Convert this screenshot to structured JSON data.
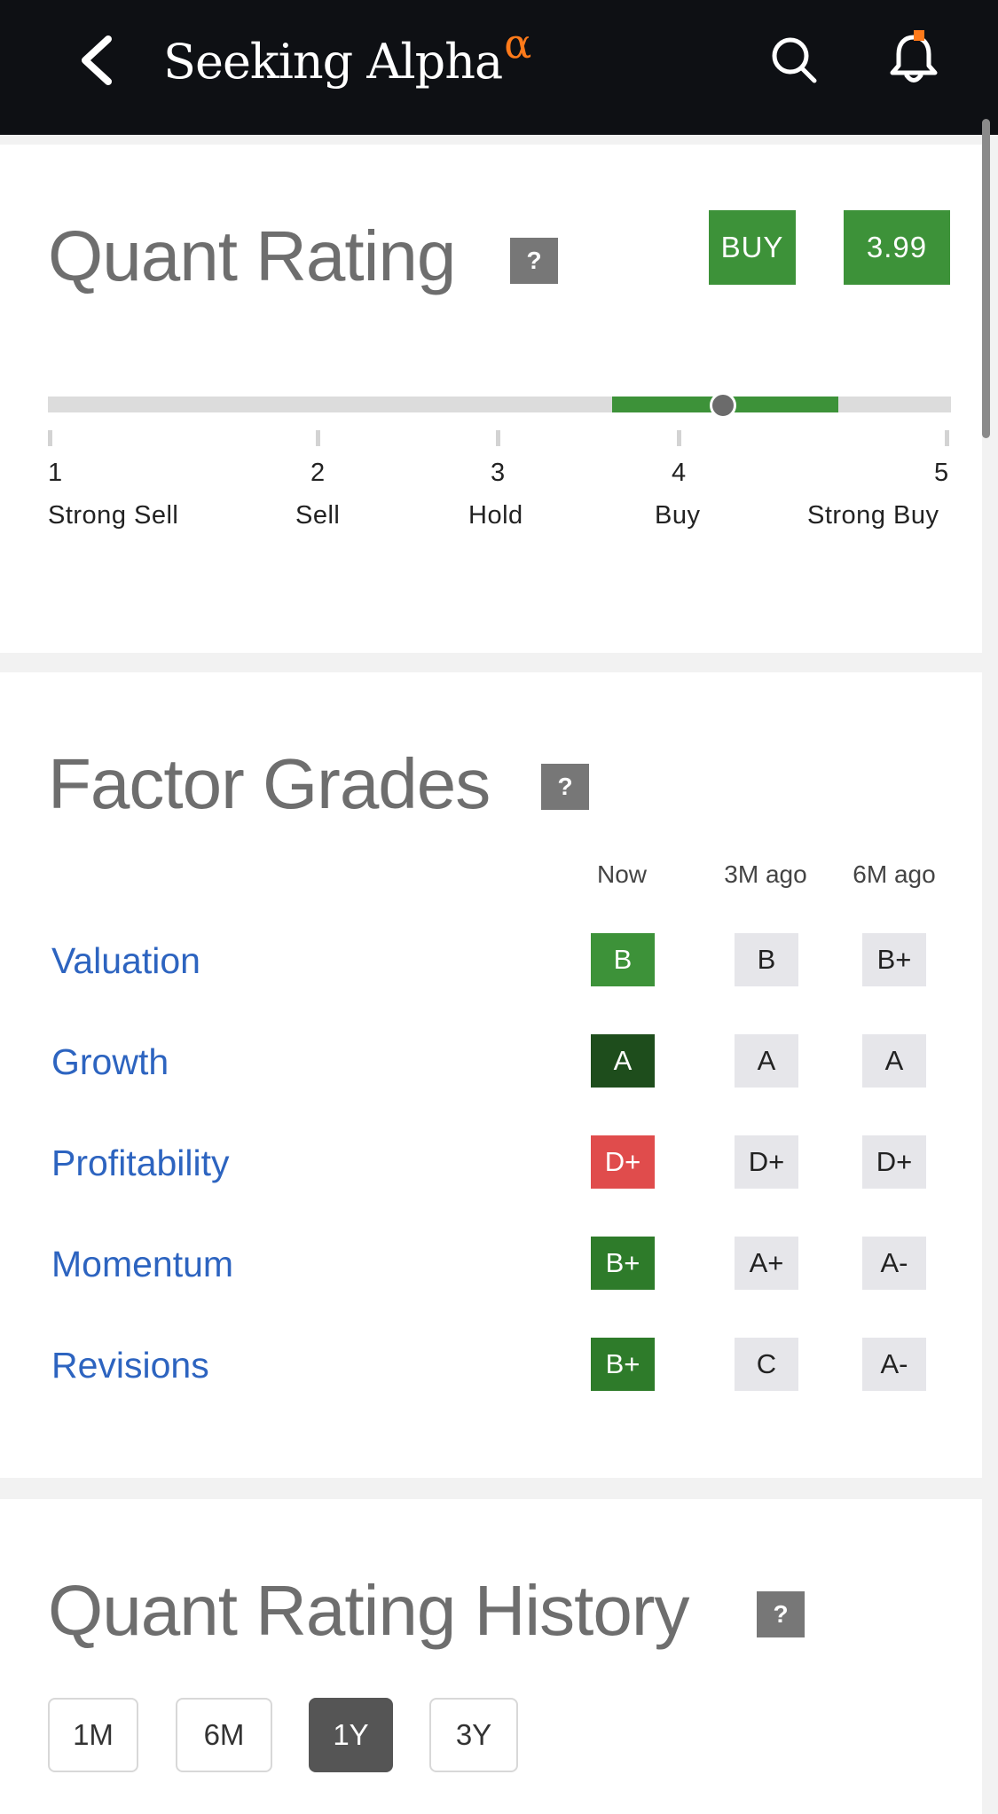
{
  "header": {
    "brand_name": "Seeking Alpha",
    "brand_symbol": "α",
    "icons": [
      "back-chevron-icon",
      "search-icon",
      "bell-icon"
    ],
    "notification_dot_color": "#ff7a1a"
  },
  "quant_rating": {
    "title": "Quant Rating",
    "help": "?",
    "rating_label": "BUY",
    "score": "3.99",
    "scale": [
      {
        "num": "1",
        "label": "Strong Sell"
      },
      {
        "num": "2",
        "label": "Sell"
      },
      {
        "num": "3",
        "label": "Hold"
      },
      {
        "num": "4",
        "label": "Buy"
      },
      {
        "num": "5",
        "label": "Strong Buy"
      }
    ],
    "knob_value": 3.99,
    "highlight_range": [
      3.5,
      4.5
    ],
    "accent_color": "#3d9239"
  },
  "factor_grades": {
    "title": "Factor Grades",
    "help": "?",
    "columns": [
      "Now",
      "3M ago",
      "6M ago"
    ],
    "rows": [
      {
        "factor": "Valuation",
        "now": "B",
        "m3": "B",
        "m6": "B+",
        "now_color": "#3d9239"
      },
      {
        "factor": "Growth",
        "now": "A",
        "m3": "A",
        "m6": "A",
        "now_color": "#1e4d1c"
      },
      {
        "factor": "Profitability",
        "now": "D+",
        "m3": "D+",
        "m6": "D+",
        "now_color": "#e04c4c"
      },
      {
        "factor": "Momentum",
        "now": "B+",
        "m3": "A+",
        "m6": "A-",
        "now_color": "#2e7b2a"
      },
      {
        "factor": "Revisions",
        "now": "B+",
        "m3": "C",
        "m6": "A-",
        "now_color": "#2e7b2a"
      }
    ]
  },
  "rating_history": {
    "title": "Quant Rating History",
    "help": "?",
    "periods": [
      "1M",
      "6M",
      "1Y",
      "3Y"
    ],
    "selected": "1Y"
  }
}
